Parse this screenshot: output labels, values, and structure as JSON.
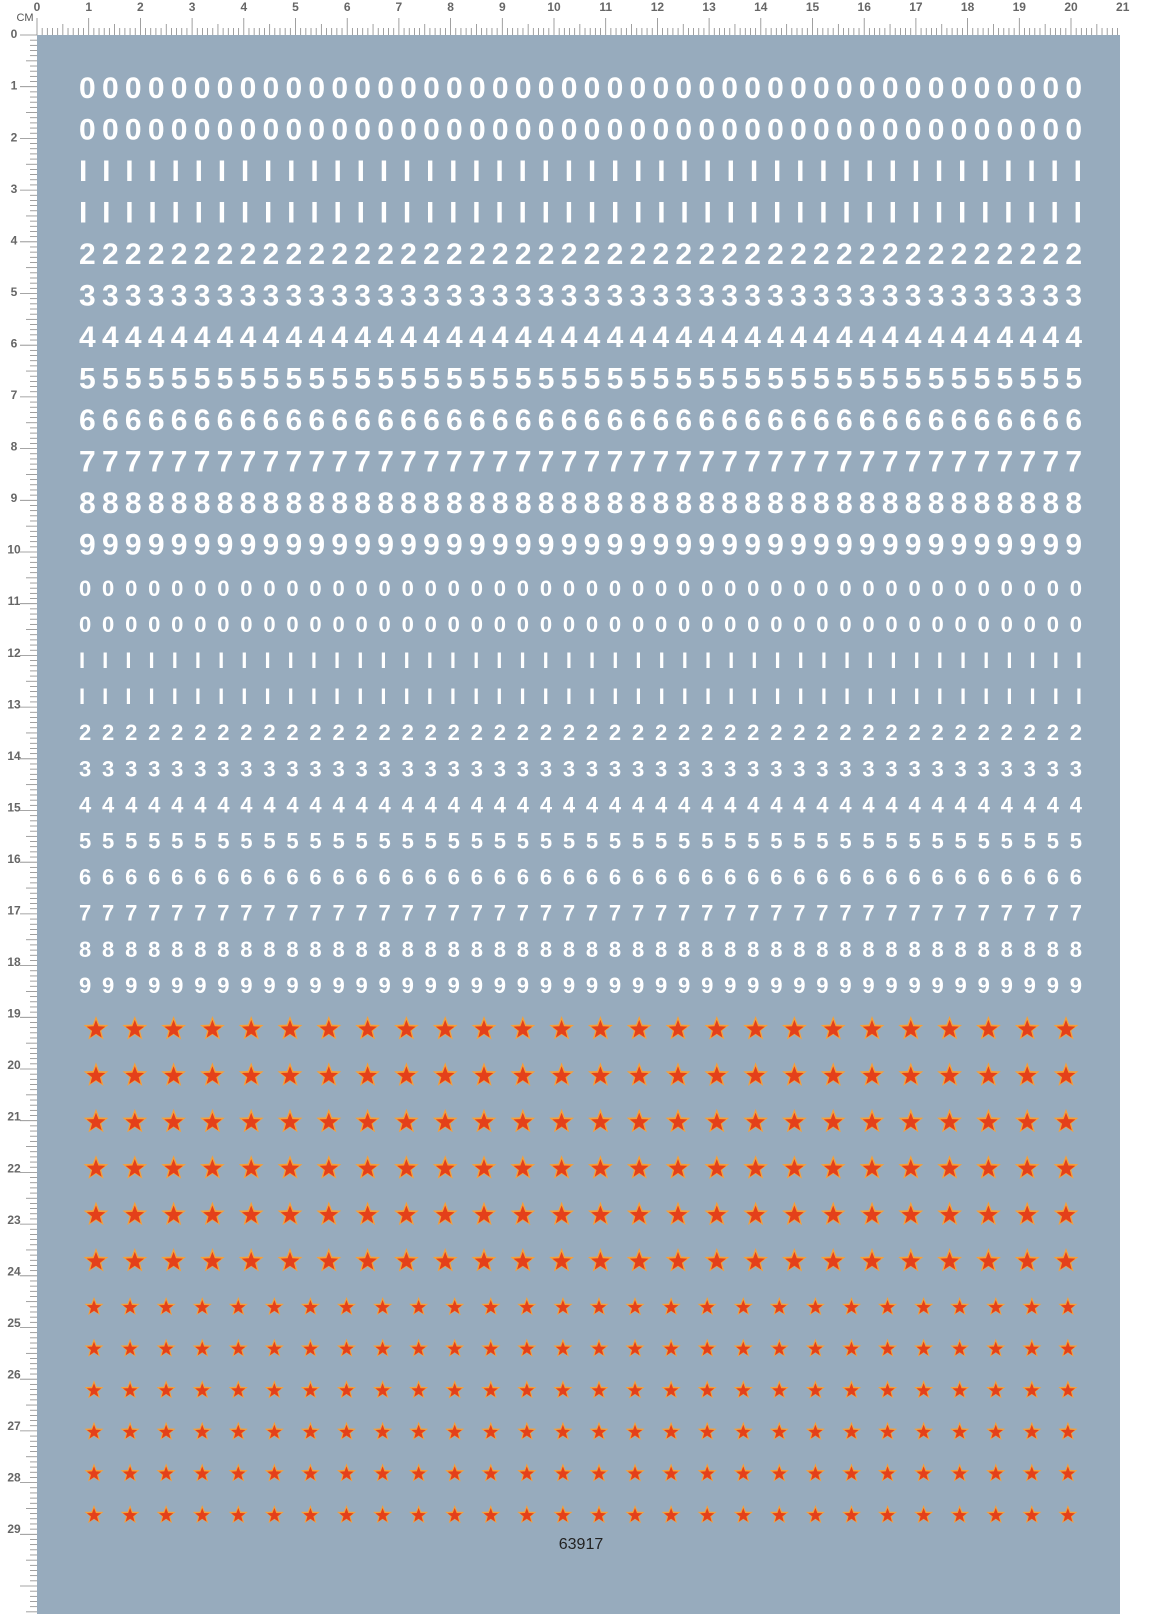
{
  "ruler": {
    "unit": "CM",
    "top": [
      "0",
      "1",
      "2",
      "3",
      "4",
      "5",
      "6",
      "7",
      "8",
      "9",
      "10",
      "11",
      "12",
      "13",
      "14",
      "15",
      "16",
      "17",
      "18",
      "19",
      "20",
      "21"
    ],
    "left": [
      "0",
      "1",
      "2",
      "3",
      "4",
      "5",
      "6",
      "7",
      "8",
      "9",
      "10",
      "11",
      "12",
      "13",
      "14",
      "15",
      "16",
      "17",
      "18",
      "19",
      "20",
      "21",
      "22",
      "23",
      "24",
      "25",
      "26",
      "27",
      "28",
      "29"
    ]
  },
  "rows": [
    "00000000000000000000000000000000000000000000",
    "00000000000000000000000000000000000000000000",
    "IIIIIIIIIIIIIIIIIIIIIIIIIIIIIIIIIIIIIIIIIIII",
    "IIIIIIIIIIIIIIIIIIIIIIIIIIIIIIIIIIIIIIIIIIII",
    "22222222222222222222222222222222222222222222",
    "33333333333333333333333333333333333333333333",
    "44444444444444444444444444444444444444444444",
    "55555555555555555555555555555555555555555555",
    "66666666666666666666666666666666666666666666",
    "77777777777777777777777777777777777777777777",
    "88888888888888888888888888888888888888888888",
    "99999999999999999999999999999999999999999999",
    "00000000000000000000000000000000000000000000",
    "00000000000000000000000000000000000000000000",
    "IIIIIIIIIIIIIIIIIIIIIIIIIIIIIIIIIIIIIIIIIIII",
    "IIIIIIIIIIIIIIIIIIIIIIIIIIIIIIIIIIIIIIIIIIII",
    "22222222222222222222222222222222222222222222",
    "33333333333333333333333333333333333333333333",
    "44444444444444444444444444444444444444444444",
    "55555555555555555555555555555555555555555555",
    "66666666666666666666666666666666666666666666",
    "77777777777777777777777777777777777777777777",
    "88888888888888888888888888888888888888888888",
    "99999999999999999999999999999999999999999999"
  ],
  "code": "63917"
}
